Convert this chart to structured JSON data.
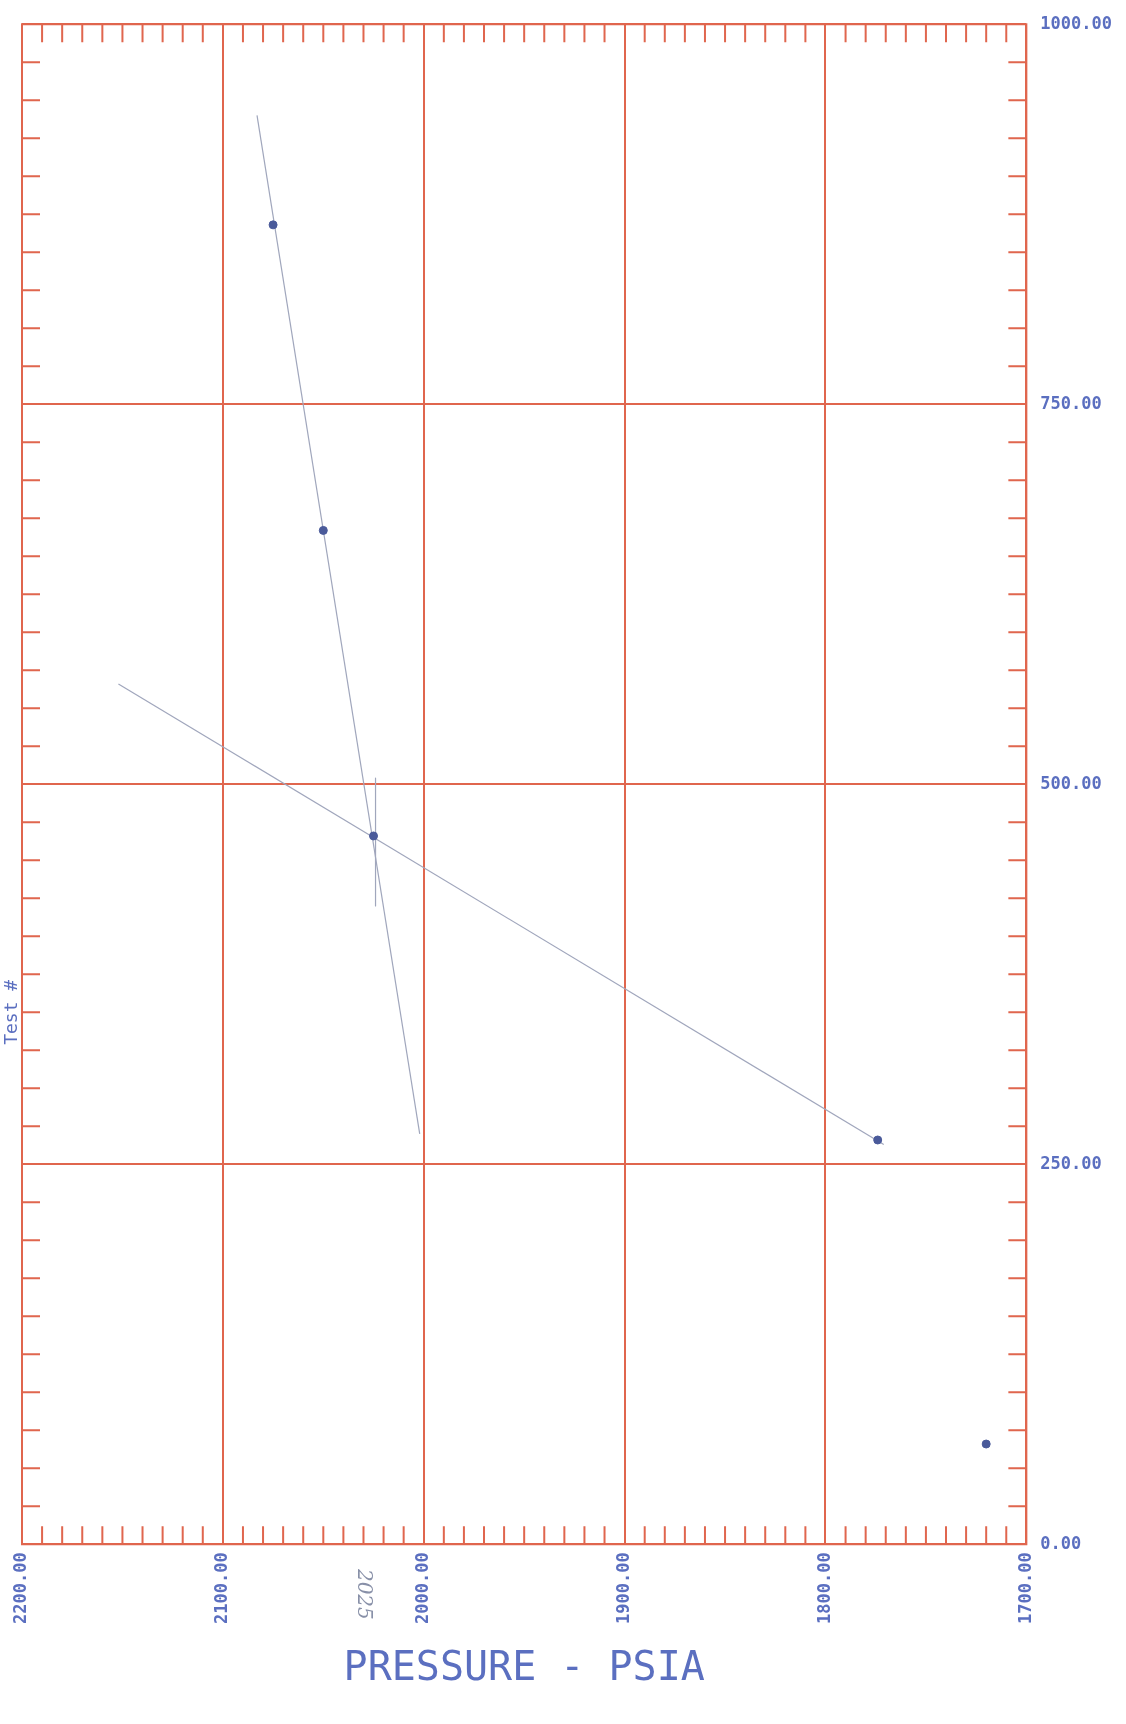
{
  "chart_data": {
    "type": "scatter",
    "xlabel": "PRESSURE - PSIA",
    "ylabel": "Test #",
    "xlim": [
      2200,
      1700
    ],
    "ylim": [
      0,
      1000
    ],
    "xticks": [
      {
        "value": 2200,
        "label": "2200.00"
      },
      {
        "value": 2100,
        "label": "2100.00"
      },
      {
        "value": 2000,
        "label": "2000.00"
      },
      {
        "value": 1900,
        "label": "1900.00"
      },
      {
        "value": 1800,
        "label": "1800.00"
      },
      {
        "value": 1700,
        "label": "1700.00"
      }
    ],
    "yticks": [
      {
        "value": 0,
        "label": "0.00"
      },
      {
        "value": 250,
        "label": "250.00"
      },
      {
        "value": 500,
        "label": "500.00"
      },
      {
        "value": 750,
        "label": "750.00"
      },
      {
        "value": 1000,
        "label": "1000.00"
      }
    ],
    "grid": true,
    "marker": "circle",
    "series": [
      {
        "color": "#4a5a9a",
        "x": [
          2075,
          2050,
          2025,
          1774,
          1720
        ],
        "values": [
          868,
          667,
          466,
          266,
          66
        ]
      },
      {
        "type": "line",
        "marker": "none",
        "color": "#a0a6bc",
        "x": [
          2083,
          2002
        ],
        "values": [
          940,
          270
        ]
      },
      {
        "type": "line",
        "marker": "none",
        "color": "#a0a6bc",
        "x": [
          2152,
          1771
        ],
        "values": [
          566,
          263
        ]
      },
      {
        "type": "line",
        "marker": "none",
        "color": "#a0a6bc",
        "x": [
          2024,
          2024
        ],
        "values": [
          504,
          420
        ]
      }
    ],
    "annotations": [
      "2025"
    ]
  }
}
